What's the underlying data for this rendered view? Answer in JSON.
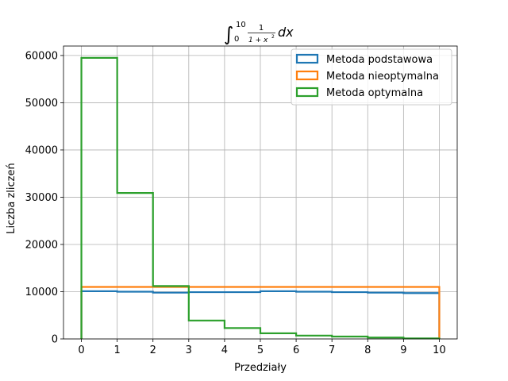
{
  "chart_data": {
    "type": "histogram-step",
    "title": {
      "integral_lower": "0",
      "integral_upper": "10",
      "numerator": "1",
      "denominator_base": "1 + x",
      "denominator_exp": "2",
      "differential": "dx"
    },
    "xlabel": "Przedziały",
    "ylabel": "Liczba zliczeń",
    "xlim": [
      -0.5,
      10.5
    ],
    "ylim": [
      0,
      62000
    ],
    "x_ticks": [
      0,
      1,
      2,
      3,
      4,
      5,
      6,
      7,
      8,
      9,
      10
    ],
    "x_tick_labels": [
      "0",
      "1",
      "2",
      "3",
      "4",
      "5",
      "6",
      "7",
      "8",
      "9",
      "10"
    ],
    "y_ticks": [
      0,
      10000,
      20000,
      30000,
      40000,
      50000,
      60000
    ],
    "y_tick_labels": [
      "0",
      "10000",
      "20000",
      "30000",
      "40000",
      "50000",
      "60000"
    ],
    "grid": true,
    "legend_position": "top-right",
    "bin_edges": [
      0,
      1,
      2,
      3,
      4,
      5,
      6,
      7,
      8,
      9,
      10
    ],
    "series": [
      {
        "name": "Metoda podstawowa",
        "color": "#1f77b4",
        "values": [
          10100,
          10000,
          9800,
          9900,
          9900,
          10100,
          10000,
          9900,
          9800,
          9700
        ]
      },
      {
        "name": "Metoda nieoptymalna",
        "color": "#ff7f0e",
        "values": [
          11000,
          11000,
          11000,
          11000,
          11000,
          11000,
          11000,
          11000,
          11000,
          11000
        ]
      },
      {
        "name": "Metoda optymalna",
        "color": "#2ca02c",
        "values": [
          59500,
          30900,
          11200,
          3900,
          2300,
          1200,
          700,
          500,
          300,
          100
        ]
      }
    ]
  }
}
